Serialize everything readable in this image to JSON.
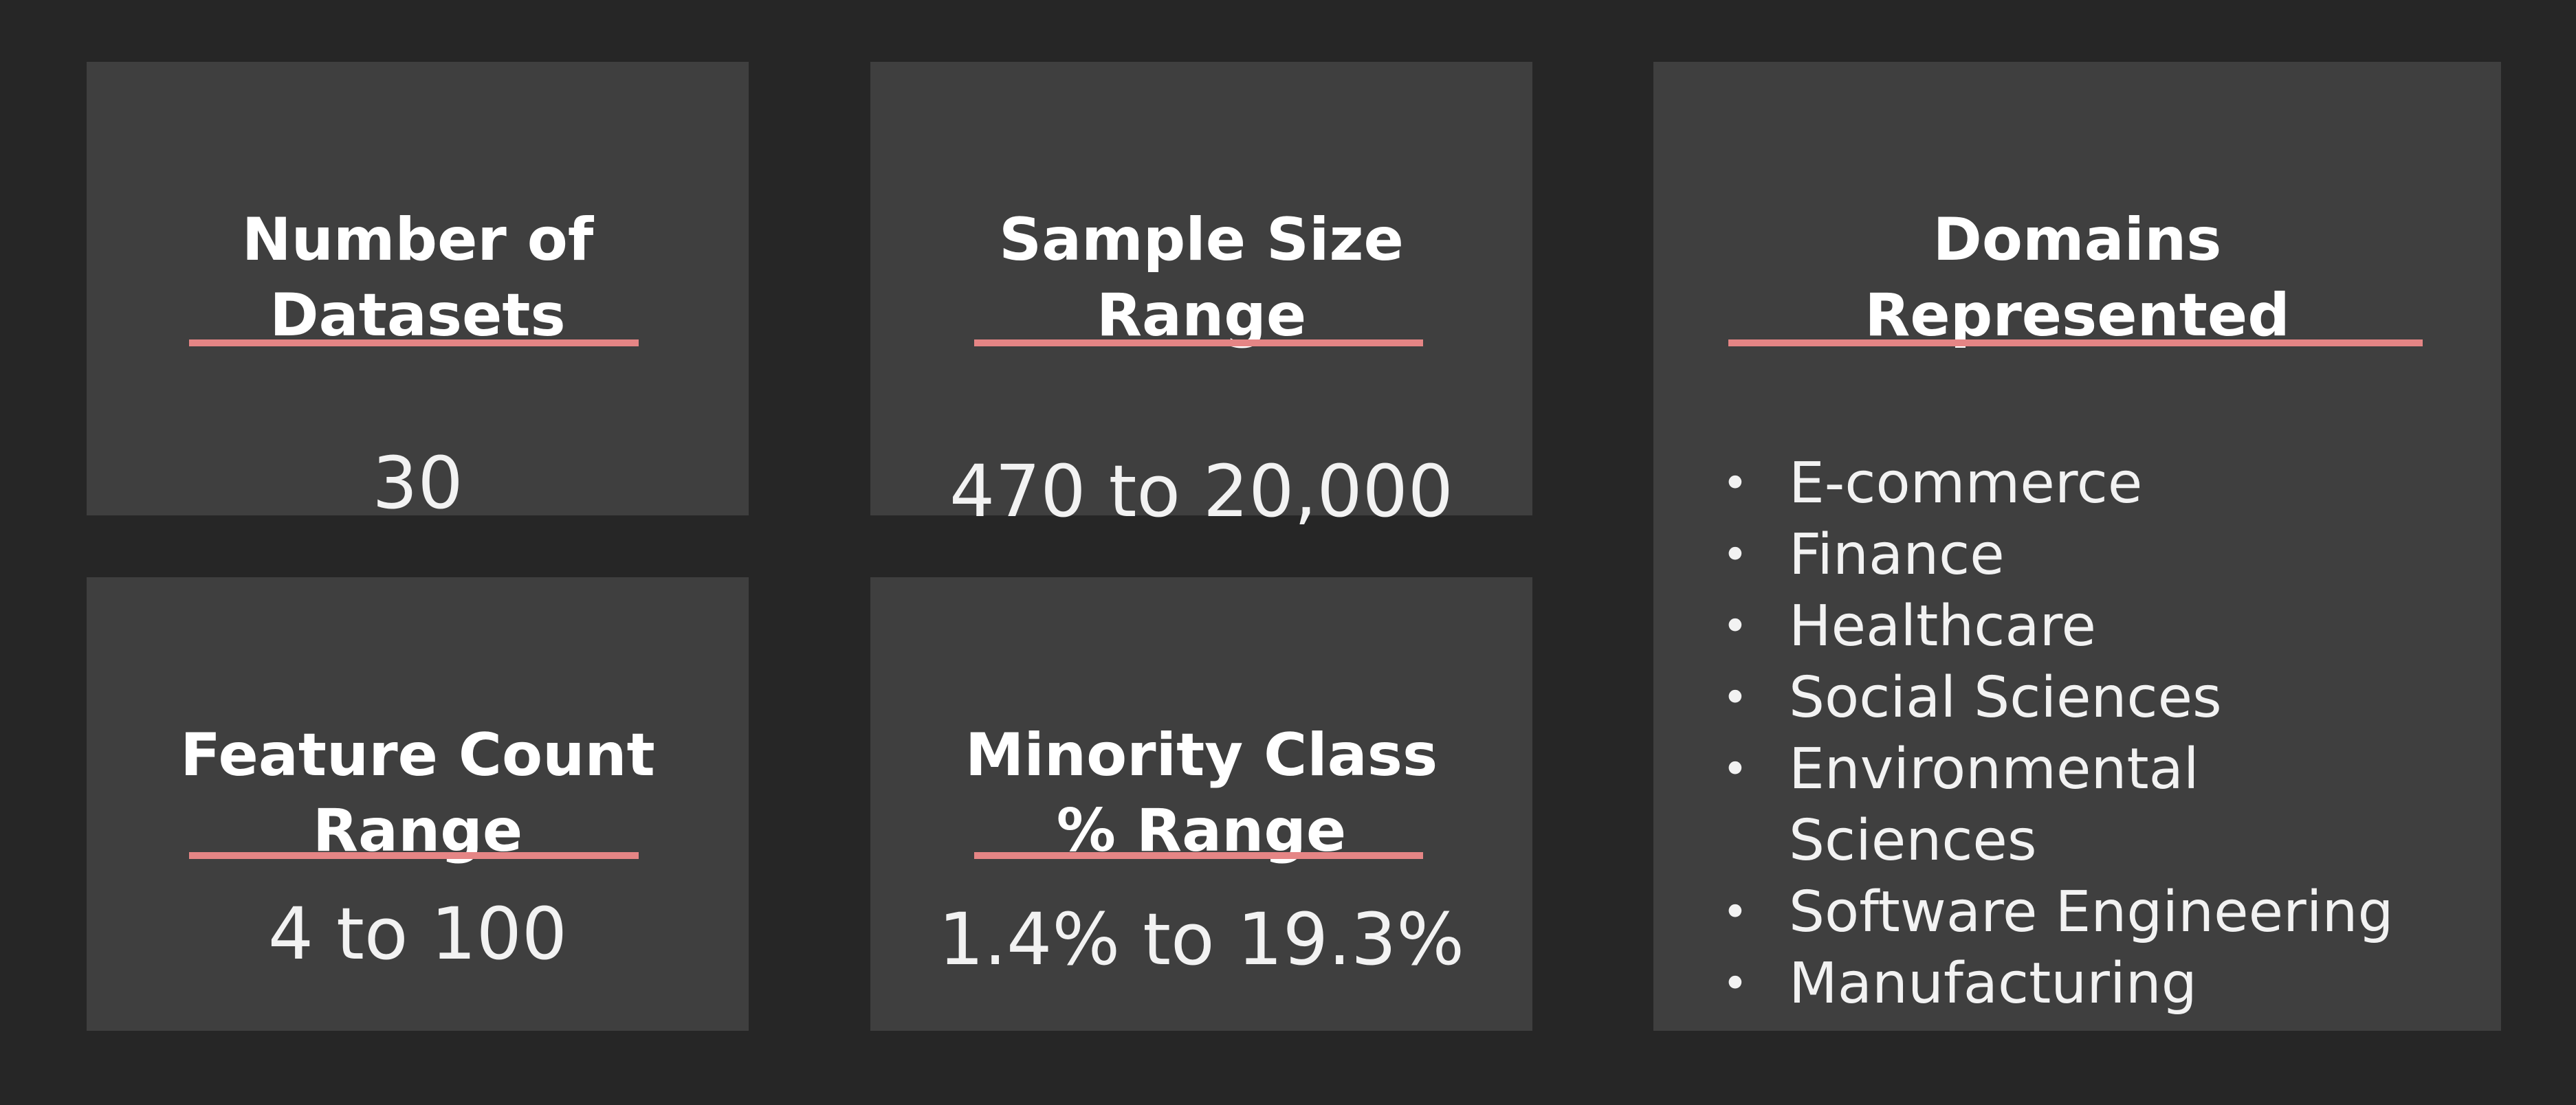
{
  "cards": {
    "datasets": {
      "title_line1": "Number of",
      "title_line2": "Datasets",
      "value": "30"
    },
    "sample_size": {
      "title_line1": "Sample Size",
      "title_line2": "Range",
      "value": "470 to 20,000"
    },
    "feature_count": {
      "title_line1": "Feature Count",
      "title_line2": "Range",
      "value": "4 to 100"
    },
    "minority_class": {
      "title_line1": "Minority Class",
      "title_line2": "% Range",
      "value": "1.4% to 19.3%"
    },
    "domains": {
      "title_line1": "Domains",
      "title_line2": "Represented",
      "items": [
        "E-commerce",
        "Finance",
        "Healthcare",
        "Social Sciences",
        "Environmental Sciences",
        "Software Engineering",
        "Manufacturing"
      ]
    }
  },
  "colors": {
    "background": "#262626",
    "card": "#3f3f3f",
    "accent_rule": "#e58585",
    "text": "#f2f2f2"
  }
}
